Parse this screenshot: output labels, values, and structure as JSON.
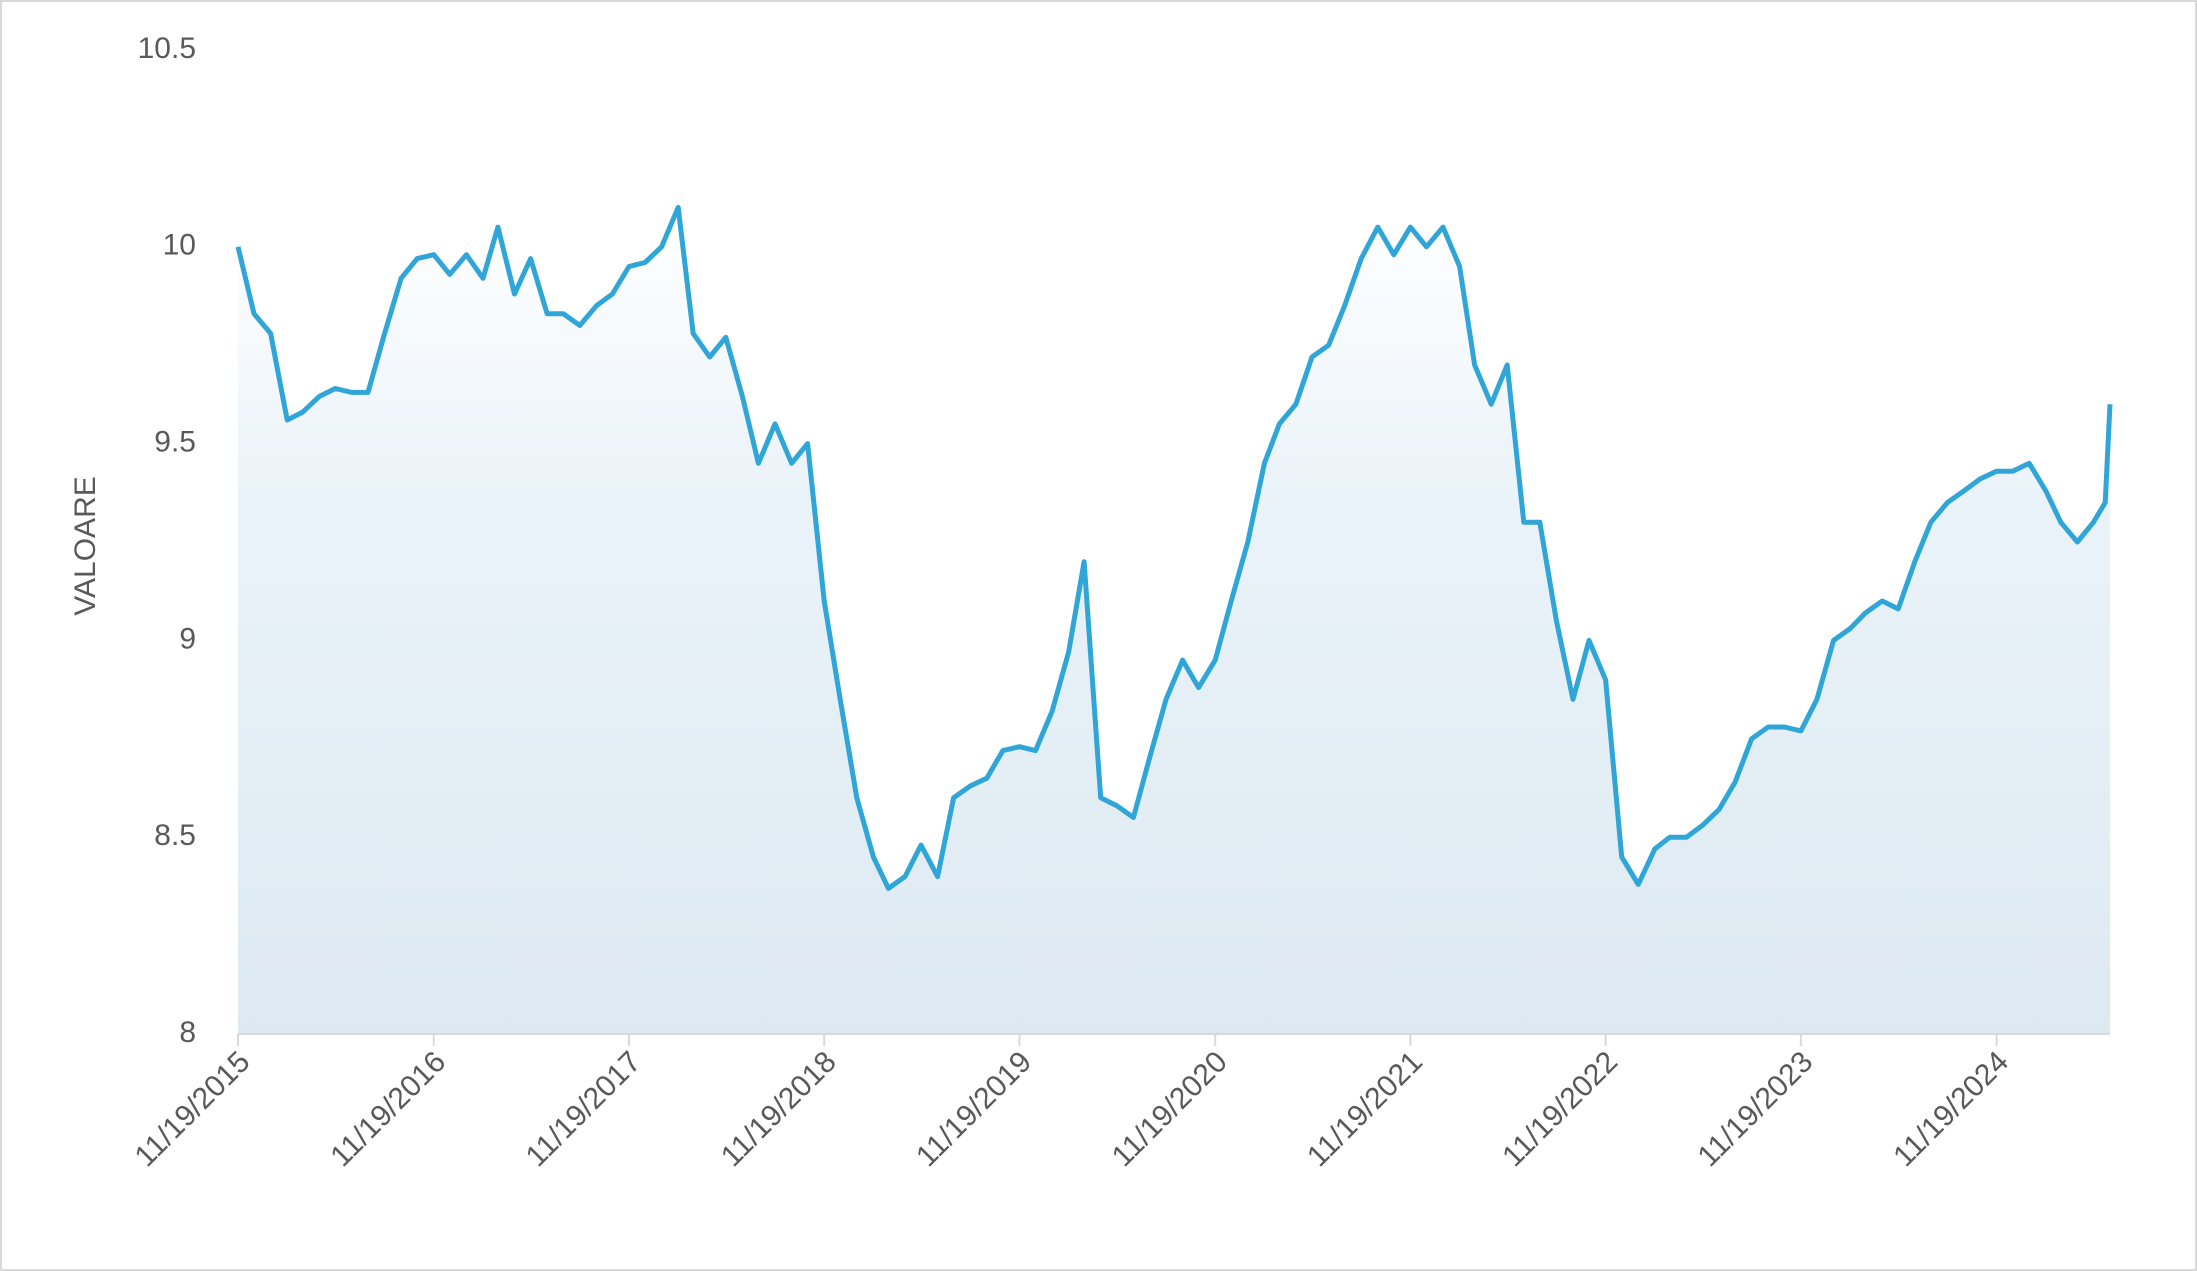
{
  "chart_data": {
    "type": "area",
    "y_label": "VALOARE",
    "color": "#2fa5d8",
    "x": [
      "11/19/2015",
      "12/19/2015",
      "1/19/2016",
      "2/19/2016",
      "3/19/2016",
      "4/19/2016",
      "5/19/2016",
      "6/19/2016",
      "7/19/2016",
      "8/19/2016",
      "9/19/2016",
      "10/19/2016",
      "11/19/2016",
      "12/19/2016",
      "1/19/2017",
      "2/19/2017",
      "3/19/2017",
      "4/19/2017",
      "5/19/2017",
      "6/19/2017",
      "7/19/2017",
      "8/19/2017",
      "9/19/2017",
      "10/19/2017",
      "11/19/2017",
      "12/19/2017",
      "1/19/2018",
      "2/19/2018",
      "3/19/2018",
      "4/19/2018",
      "5/19/2018",
      "6/19/2018",
      "7/19/2018",
      "8/19/2018",
      "9/19/2018",
      "10/19/2018",
      "11/19/2018",
      "12/19/2018",
      "1/19/2019",
      "2/19/2019",
      "3/19/2019",
      "4/19/2019",
      "5/19/2019",
      "6/19/2019",
      "7/19/2019",
      "8/19/2019",
      "9/19/2019",
      "10/19/2019",
      "11/19/2019",
      "12/19/2019",
      "1/19/2020",
      "2/19/2020",
      "3/19/2020",
      "4/19/2020",
      "5/19/2020",
      "6/19/2020",
      "7/19/2020",
      "8/19/2020",
      "9/19/2020",
      "10/19/2020",
      "11/19/2020",
      "12/19/2020",
      "1/19/2021",
      "2/19/2021",
      "3/19/2021",
      "4/19/2021",
      "5/19/2021",
      "6/19/2021",
      "7/19/2021",
      "8/19/2021",
      "9/19/2021",
      "10/19/2021",
      "11/19/2021",
      "12/19/2021",
      "1/19/2022",
      "2/19/2022",
      "3/19/2022",
      "4/19/2022",
      "5/19/2022",
      "6/19/2022",
      "7/19/2022",
      "8/19/2022",
      "9/19/2022",
      "10/19/2022",
      "11/19/2022",
      "12/19/2022",
      "1/19/2023",
      "2/19/2023",
      "3/19/2023",
      "4/19/2023",
      "5/19/2023",
      "6/19/2023",
      "7/19/2023",
      "8/19/2023",
      "9/19/2023",
      "10/19/2023",
      "11/19/2023",
      "12/19/2023",
      "1/19/2024",
      "2/19/2024",
      "3/19/2024",
      "4/19/2024",
      "5/19/2024",
      "6/19/2024",
      "7/19/2024",
      "8/19/2024",
      "9/19/2024",
      "10/19/2024",
      "11/19/2024",
      "12/19/2024",
      "1/19/2025",
      "2/19/2025",
      "3/19/2025",
      "4/19/2025",
      "5/19/2025",
      "6/10/2025",
      "6/19/2025"
    ],
    "values": [
      10.0,
      9.83,
      9.78,
      9.56,
      9.58,
      9.62,
      9.64,
      9.63,
      9.63,
      9.78,
      9.92,
      9.97,
      9.98,
      9.93,
      9.98,
      9.92,
      10.05,
      9.88,
      9.97,
      9.83,
      9.83,
      9.8,
      9.85,
      9.88,
      9.95,
      9.96,
      10.0,
      10.1,
      9.78,
      9.72,
      9.77,
      9.62,
      9.45,
      9.55,
      9.45,
      9.5,
      9.1,
      8.85,
      8.6,
      8.45,
      8.37,
      8.4,
      8.48,
      8.4,
      8.6,
      8.63,
      8.65,
      8.72,
      8.73,
      8.72,
      8.82,
      8.97,
      9.2,
      8.6,
      8.58,
      8.55,
      8.7,
      8.85,
      8.95,
      8.88,
      8.95,
      9.1,
      9.25,
      9.45,
      9.55,
      9.6,
      9.72,
      9.75,
      9.85,
      9.97,
      10.05,
      9.98,
      10.05,
      10.0,
      10.05,
      9.95,
      9.7,
      9.6,
      9.7,
      9.3,
      9.3,
      9.05,
      8.85,
      9.0,
      8.9,
      8.45,
      8.38,
      8.47,
      8.5,
      8.5,
      8.53,
      8.57,
      8.64,
      8.75,
      8.78,
      8.78,
      8.77,
      8.85,
      9.0,
      9.03,
      9.07,
      9.1,
      9.08,
      9.2,
      9.3,
      9.35,
      9.38,
      9.41,
      9.43,
      9.43,
      9.45,
      9.38,
      9.3,
      9.25,
      9.3,
      9.35,
      9.6
    ],
    "xlim": [
      "11/19/2015",
      "6/19/2025"
    ],
    "xticks": [
      "11/19/2015",
      "11/19/2016",
      "11/19/2017",
      "11/19/2018",
      "11/19/2019",
      "11/19/2020",
      "11/19/2021",
      "11/19/2022",
      "11/19/2023",
      "11/19/2024"
    ],
    "ylim": [
      8,
      10.5
    ],
    "yticks": [
      8,
      8.5,
      9,
      9.5,
      10,
      10.5
    ]
  }
}
